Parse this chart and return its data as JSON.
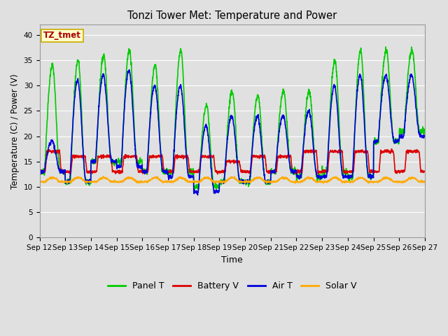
{
  "title": "Tonzi Tower Met: Temperature and Power",
  "xlabel": "Time",
  "ylabel": "Temperature (C) / Power (V)",
  "ylim": [
    0,
    42
  ],
  "yticks": [
    0,
    5,
    10,
    15,
    20,
    25,
    30,
    35,
    40
  ],
  "x_labels": [
    "Sep 12",
    "Sep 13",
    "Sep 14",
    "Sep 15",
    "Sep 16",
    "Sep 17",
    "Sep 18",
    "Sep 19",
    "Sep 20",
    "Sep 21",
    "Sep 22",
    "Sep 23",
    "Sep 24",
    "Sep 25",
    "Sep 26",
    "Sep 27"
  ],
  "n_days": 15,
  "background_color": "#e0e0e0",
  "plot_bg_color": "#e0e0e0",
  "grid_color": "#ffffff",
  "legend_label": "TZ_tmet",
  "colors": {
    "panel_t": "#00cc00",
    "battery_v": "#dd0000",
    "air_t": "#0000dd",
    "solar_v": "#ffaa00"
  },
  "line_width": 1.2,
  "panel_peaks": [
    34,
    35,
    36,
    37,
    34,
    37,
    26,
    29,
    28,
    29,
    29,
    35,
    37,
    37,
    37
  ],
  "air_peaks": [
    19,
    31,
    32,
    33,
    30,
    30,
    22,
    24,
    24,
    24,
    25,
    30,
    32,
    32,
    32
  ],
  "panel_mins": [
    13,
    11,
    15,
    15,
    13,
    13,
    10,
    11,
    11,
    13,
    12,
    13,
    12,
    19,
    21
  ],
  "air_mins": [
    13,
    11,
    15,
    14,
    13,
    12,
    9,
    11,
    11,
    13,
    12,
    12,
    12,
    19,
    20
  ],
  "batt_peaks": [
    17,
    16,
    16,
    16,
    16,
    16,
    16,
    15,
    16,
    16,
    17,
    17,
    17,
    17,
    17
  ],
  "batt_base": [
    13,
    13,
    13,
    13,
    13,
    13,
    13,
    13,
    13,
    13,
    13,
    13,
    13,
    13,
    13
  ],
  "solar_peaks": [
    12,
    12,
    12,
    12,
    12,
    12,
    12,
    12,
    12,
    12,
    12,
    12,
    12,
    12,
    12
  ],
  "solar_base": [
    11,
    11,
    11,
    11,
    11,
    11,
    11,
    11,
    11,
    11,
    11,
    11,
    11,
    11,
    11
  ],
  "pts_per_day": 144
}
